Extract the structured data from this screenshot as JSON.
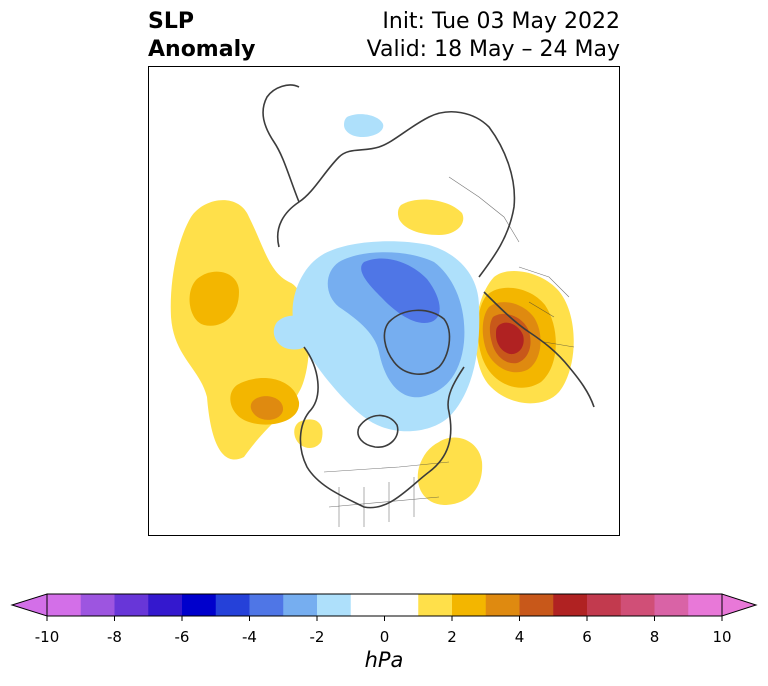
{
  "header": {
    "title_line1": "SLP",
    "title_line2": "Anomaly",
    "init_label": "Init: Tue 03 May 2022",
    "valid_label": "Valid: 18 May – 24 May"
  },
  "colorbar": {
    "unit_label": "hPa",
    "ticks": [
      "-10",
      "-8",
      "-6",
      "-4",
      "-2",
      "0",
      "2",
      "4",
      "6",
      "8",
      "10"
    ],
    "colors": [
      "#d36fe8",
      "#9d55e0",
      "#6836d8",
      "#3418ce",
      "#0000cc",
      "#2541d9",
      "#4f76e6",
      "#76aef0",
      "#aee0fb",
      "#ffffff",
      "#ffffff",
      "#ffe04a",
      "#f3b600",
      "#df8a10",
      "#c8581a",
      "#b02222",
      "#c23a4e",
      "#d04f77",
      "#d963a6",
      "#e878d8"
    ],
    "extend": "both"
  },
  "anomaly_colors": {
    "pos_2": "#ffe04a",
    "pos_3": "#f3b600",
    "pos_4": "#df8a10",
    "pos_5": "#c8581a",
    "pos_6": "#b02222",
    "neg_1": "#aee0fb",
    "neg_2": "#76aef0",
    "neg_3": "#4f76e6",
    "coastline": "#3c3c3c"
  }
}
